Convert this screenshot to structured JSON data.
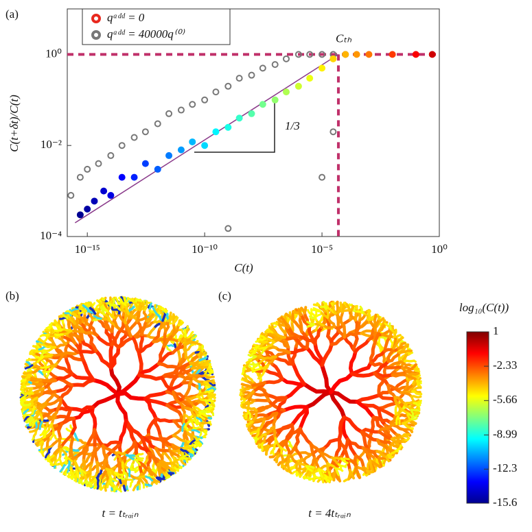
{
  "chart_data": {
    "type": "scatter",
    "panel_label": "(a)",
    "x_label": "C(t)",
    "y_label": "C(t+δt)/C(t)",
    "log_x": true,
    "log_y": true,
    "colormap": "jet",
    "xlim": [
      1.4e-16,
      1
    ],
    "ylim": [
      0.0001,
      10
    ],
    "xticks": [
      {
        "value": 1e-15,
        "label": "10⁻¹⁵"
      },
      {
        "value": 1e-10,
        "label": "10⁻¹⁰"
      },
      {
        "value": 1e-05,
        "label": "10⁻⁵"
      },
      {
        "value": 1,
        "label": "10⁰"
      }
    ],
    "yticks": [
      {
        "value": 0.0001,
        "label": "10⁻⁴"
      },
      {
        "value": 0.01,
        "label": "10⁻²"
      },
      {
        "value": 1,
        "label": "10⁰"
      }
    ],
    "series": [
      {
        "name": "qᵃᵈᵈ = 0",
        "color": "#e8281e",
        "x": [
          5e-16,
          1e-15,
          2e-15,
          5e-15,
          1e-14,
          3e-14,
          1e-13,
          3e-13,
          1e-12,
          3e-12,
          1e-11,
          3e-11,
          1e-10,
          3e-10,
          1e-09,
          3e-09,
          1e-08,
          3e-08,
          1e-07,
          3e-07,
          1e-06,
          3e-06,
          1e-05,
          3e-05,
          0.0001,
          0.0003,
          0.001,
          0.01,
          0.1,
          0.5
        ],
        "values": [
          0.0003,
          0.0004,
          0.0006,
          0.001,
          0.0008,
          0.002,
          0.002,
          0.004,
          0.003,
          0.006,
          0.008,
          0.012,
          0.01,
          0.02,
          0.025,
          0.04,
          0.05,
          0.08,
          0.1,
          0.15,
          0.2,
          0.3,
          0.5,
          0.8,
          1,
          1,
          1,
          1,
          1,
          1
        ]
      },
      {
        "name": "qᵃᵈᵈ = 40000q⁽⁰⁾",
        "color": "#777777",
        "x": [
          2e-16,
          5e-16,
          1e-15,
          3e-15,
          1e-14,
          3e-14,
          1e-13,
          3e-13,
          1e-12,
          3e-12,
          1e-11,
          3e-11,
          1e-10,
          3e-10,
          1e-09,
          3e-09,
          1e-08,
          3e-08,
          1e-07,
          3e-07,
          1e-06,
          3e-06,
          1e-05,
          3e-05,
          0.0001,
          1e-09,
          1e-05,
          3e-05
        ],
        "values": [
          0.0008,
          0.002,
          0.003,
          0.004,
          0.006,
          0.01,
          0.015,
          0.02,
          0.03,
          0.05,
          0.06,
          0.08,
          0.1,
          0.15,
          0.2,
          0.3,
          0.35,
          0.5,
          0.6,
          0.8,
          1,
          1,
          1,
          1,
          1,
          0.00015,
          0.002,
          0.02
        ]
      }
    ],
    "threshold_label": "Cₜₕ",
    "threshold_x": 5e-05,
    "threshold_y": 1,
    "fit_line": {
      "x": [
        3e-16,
        5e-05
      ],
      "y": [
        0.0002,
        1
      ]
    },
    "slope_label": "1/3"
  },
  "panels": [
    {
      "label": "(b)",
      "caption": "t = tₜᵣₐᵢₙ"
    },
    {
      "label": "(c)",
      "caption": "t = 4tₜᵣₐᵢₙ"
    }
  ],
  "colorbar": {
    "title": "log₁₀(C(t))",
    "lim": [
      -15.6,
      1
    ],
    "ticks": [
      1,
      -2.33,
      -5.66,
      -8.99,
      -12.3,
      -15.6
    ]
  }
}
